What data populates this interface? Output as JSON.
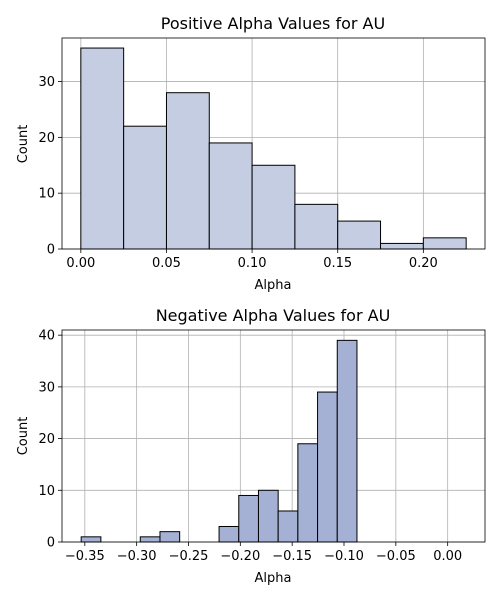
{
  "chart_data": [
    {
      "type": "bar",
      "title": "Positive Alpha Values for AU",
      "xlabel": "Alpha",
      "ylabel": "Count",
      "color": "#c4cde2",
      "bins": [
        {
          "x0": 0.0,
          "x1": 0.025,
          "count": 36
        },
        {
          "x0": 0.025,
          "x1": 0.05,
          "count": 22
        },
        {
          "x0": 0.05,
          "x1": 0.075,
          "count": 28
        },
        {
          "x0": 0.075,
          "x1": 0.1,
          "count": 19
        },
        {
          "x0": 0.1,
          "x1": 0.125,
          "count": 15
        },
        {
          "x0": 0.125,
          "x1": 0.15,
          "count": 8
        },
        {
          "x0": 0.15,
          "x1": 0.175,
          "count": 5
        },
        {
          "x0": 0.175,
          "x1": 0.2,
          "count": 1
        },
        {
          "x0": 0.2,
          "x1": 0.225,
          "count": 2
        }
      ],
      "xlim": [
        -0.011,
        0.236
      ],
      "ylim": [
        0,
        37.8
      ],
      "xticks": [
        0.0,
        0.05,
        0.1,
        0.15,
        0.2
      ],
      "xtick_labels": [
        "0.00",
        "0.05",
        "0.10",
        "0.15",
        "0.20"
      ],
      "yticks": [
        0,
        10,
        20,
        30
      ],
      "ytick_labels": [
        "0",
        "10",
        "20",
        "30"
      ],
      "grid": true
    },
    {
      "type": "bar",
      "title": "Negative Alpha Values for AU",
      "xlabel": "Alpha",
      "ylabel": "Count",
      "color": "#a4b0d4",
      "bins": [
        {
          "x0": -0.3535,
          "x1": -0.3345,
          "count": 1
        },
        {
          "x0": -0.3345,
          "x1": -0.3155,
          "count": 0
        },
        {
          "x0": -0.3155,
          "x1": -0.2965,
          "count": 0
        },
        {
          "x0": -0.2965,
          "x1": -0.2775,
          "count": 1
        },
        {
          "x0": -0.2775,
          "x1": -0.2585,
          "count": 2
        },
        {
          "x0": -0.2585,
          "x1": -0.2395,
          "count": 0
        },
        {
          "x0": -0.2395,
          "x1": -0.2205,
          "count": 0
        },
        {
          "x0": -0.2205,
          "x1": -0.2015,
          "count": 3
        },
        {
          "x0": -0.2015,
          "x1": -0.1825,
          "count": 9
        },
        {
          "x0": -0.1825,
          "x1": -0.1635,
          "count": 10
        },
        {
          "x0": -0.1635,
          "x1": -0.1445,
          "count": 6
        },
        {
          "x0": -0.1445,
          "x1": -0.1255,
          "count": 19
        },
        {
          "x0": -0.1255,
          "x1": -0.1065,
          "count": 29
        },
        {
          "x0": -0.1065,
          "x1": -0.0875,
          "count": 39
        }
      ],
      "xlim": [
        -0.372,
        0.036
      ],
      "ylim": [
        0,
        41
      ],
      "xticks": [
        -0.35,
        -0.3,
        -0.25,
        -0.2,
        -0.15,
        -0.1,
        -0.05,
        0.0
      ],
      "xtick_labels": [
        "−0.35",
        "−0.30",
        "−0.25",
        "−0.20",
        "−0.15",
        "−0.10",
        "−0.05",
        "0.00"
      ],
      "yticks": [
        0,
        10,
        20,
        30,
        40
      ],
      "ytick_labels": [
        "0",
        "10",
        "20",
        "30",
        "40"
      ],
      "grid": true
    }
  ]
}
